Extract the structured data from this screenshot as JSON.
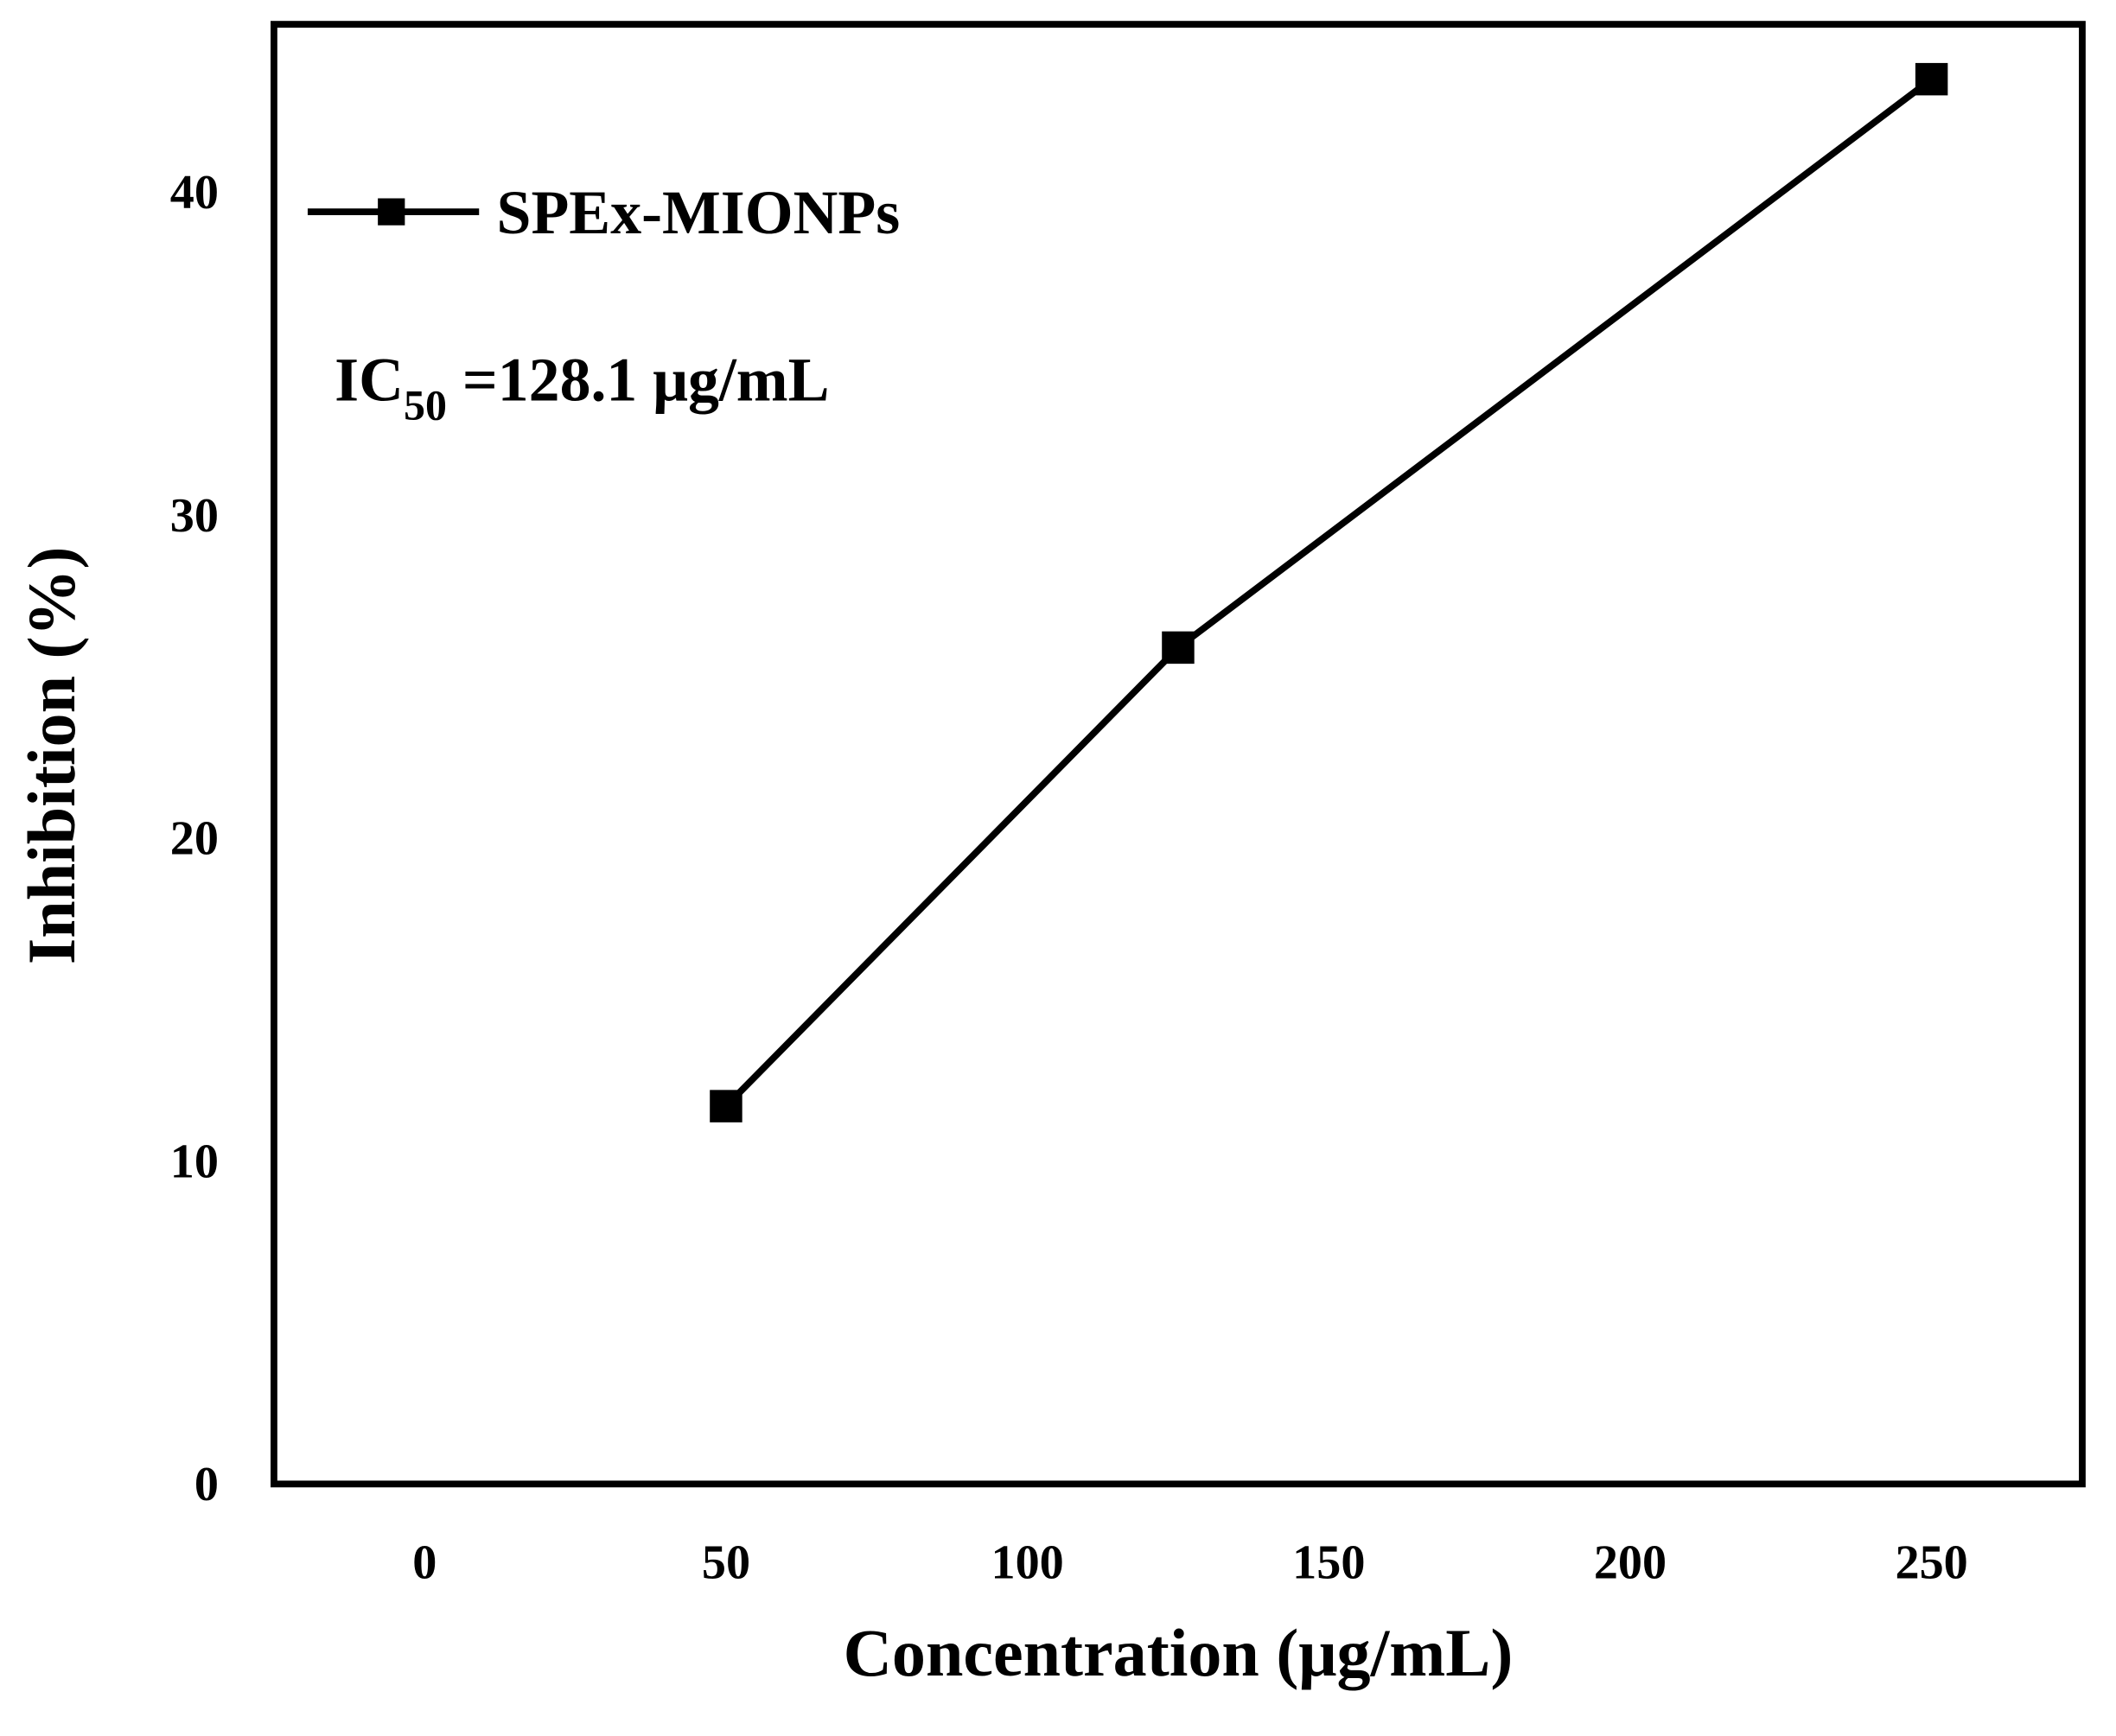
{
  "chart_data": {
    "type": "line",
    "x_label": "Concentration (μg/mL)",
    "y_label": "Inhibition (%)",
    "annotation": [
      "IC",
      "50",
      " =128.1 μg/mL"
    ],
    "x": [
      50,
      125,
      250
    ],
    "series": [
      {
        "name": "SPEx-MIONPs",
        "color": "#000000",
        "values": [
          11.7,
          25.9,
          43.5
        ]
      }
    ],
    "xlim": [
      -25,
      275
    ],
    "xticks": [
      0,
      50,
      100,
      150,
      200,
      250
    ],
    "ylim": [
      0,
      45.2
    ],
    "yticks": [
      0,
      10,
      20,
      30,
      40
    ],
    "grid": false,
    "legend": "upper left"
  }
}
